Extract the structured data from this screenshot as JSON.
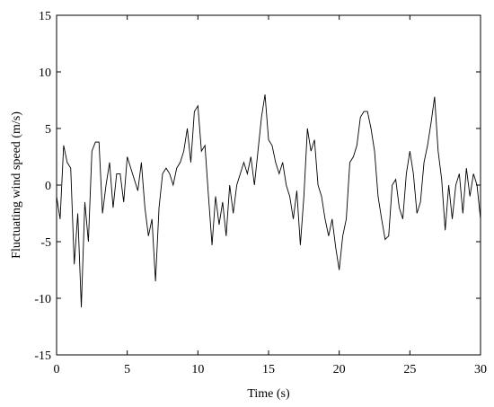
{
  "chart_data": {
    "type": "line",
    "xlabel": "Time (s)",
    "ylabel": "Fluctuating wind speed (m/s)",
    "x": [
      0,
      0.25,
      0.5,
      0.75,
      1,
      1.25,
      1.5,
      1.75,
      2,
      2.25,
      2.5,
      2.75,
      3,
      3.25,
      3.5,
      3.75,
      4,
      4.25,
      4.5,
      4.75,
      5,
      5.25,
      5.5,
      5.75,
      6,
      6.25,
      6.5,
      6.75,
      7,
      7.25,
      7.5,
      7.75,
      8,
      8.25,
      8.5,
      8.75,
      9,
      9.25,
      9.5,
      9.75,
      10,
      10.25,
      10.5,
      10.75,
      11,
      11.25,
      11.5,
      11.75,
      12,
      12.25,
      12.5,
      12.75,
      13,
      13.25,
      13.5,
      13.75,
      14,
      14.25,
      14.5,
      14.75,
      15,
      15.25,
      15.5,
      15.75,
      16,
      16.25,
      16.5,
      16.75,
      17,
      17.25,
      17.5,
      17.75,
      18,
      18.25,
      18.5,
      18.75,
      19,
      19.25,
      19.5,
      19.75,
      20,
      20.25,
      20.5,
      20.75,
      21,
      21.25,
      21.5,
      21.75,
      22,
      22.25,
      22.5,
      22.75,
      23,
      23.25,
      23.5,
      23.75,
      24,
      24.25,
      24.5,
      24.75,
      25,
      25.25,
      25.5,
      25.75,
      26,
      26.25,
      26.5,
      26.75,
      27,
      27.25,
      27.5,
      27.75,
      28,
      28.25,
      28.5,
      28.75,
      29,
      29.25,
      29.5,
      29.75,
      30
    ],
    "series": [
      {
        "color": "#000000",
        "values": [
          -1,
          -3,
          3.5,
          2,
          1.5,
          -7,
          -2.5,
          -10.8,
          -1.5,
          -5,
          3,
          3.8,
          3.8,
          -2.5,
          0,
          2,
          -2,
          1,
          1,
          -1.5,
          2.5,
          1.5,
          0.5,
          -0.5,
          2,
          -2,
          -4.5,
          -3,
          -8.5,
          -2,
          1,
          1.5,
          1,
          0,
          1.5,
          2,
          3,
          5,
          2,
          6.5,
          7,
          3,
          3.5,
          -1,
          -5.3,
          -1,
          -3.5,
          -1.5,
          -4.5,
          0,
          -2.5,
          0,
          1,
          2,
          1,
          2.5,
          0,
          3,
          6,
          8,
          4,
          3.5,
          2,
          1,
          2,
          0,
          -1,
          -3,
          -0.5,
          -5.3,
          -1,
          5,
          3,
          4,
          0,
          -1,
          -3,
          -4.5,
          -3,
          -5.5,
          -7.5,
          -4.5,
          -3,
          2,
          2.5,
          3.5,
          6,
          6.5,
          6.5,
          5,
          3,
          -1,
          -3,
          -4.8,
          -4.5,
          0,
          0.5,
          -2,
          -3,
          1,
          3,
          1,
          -2.5,
          -1.5,
          2,
          3.5,
          5.5,
          7.8,
          3,
          0.5,
          -4,
          0,
          -3,
          0,
          1,
          -2.5,
          1.5,
          -1,
          1,
          0,
          -3
        ]
      }
    ],
    "xlim": [
      0,
      30
    ],
    "ylim": [
      -15,
      15
    ],
    "xticks": [
      0,
      5,
      10,
      15,
      20,
      25,
      30
    ],
    "yticks": [
      -15,
      -10,
      -5,
      0,
      5,
      10,
      15
    ]
  }
}
